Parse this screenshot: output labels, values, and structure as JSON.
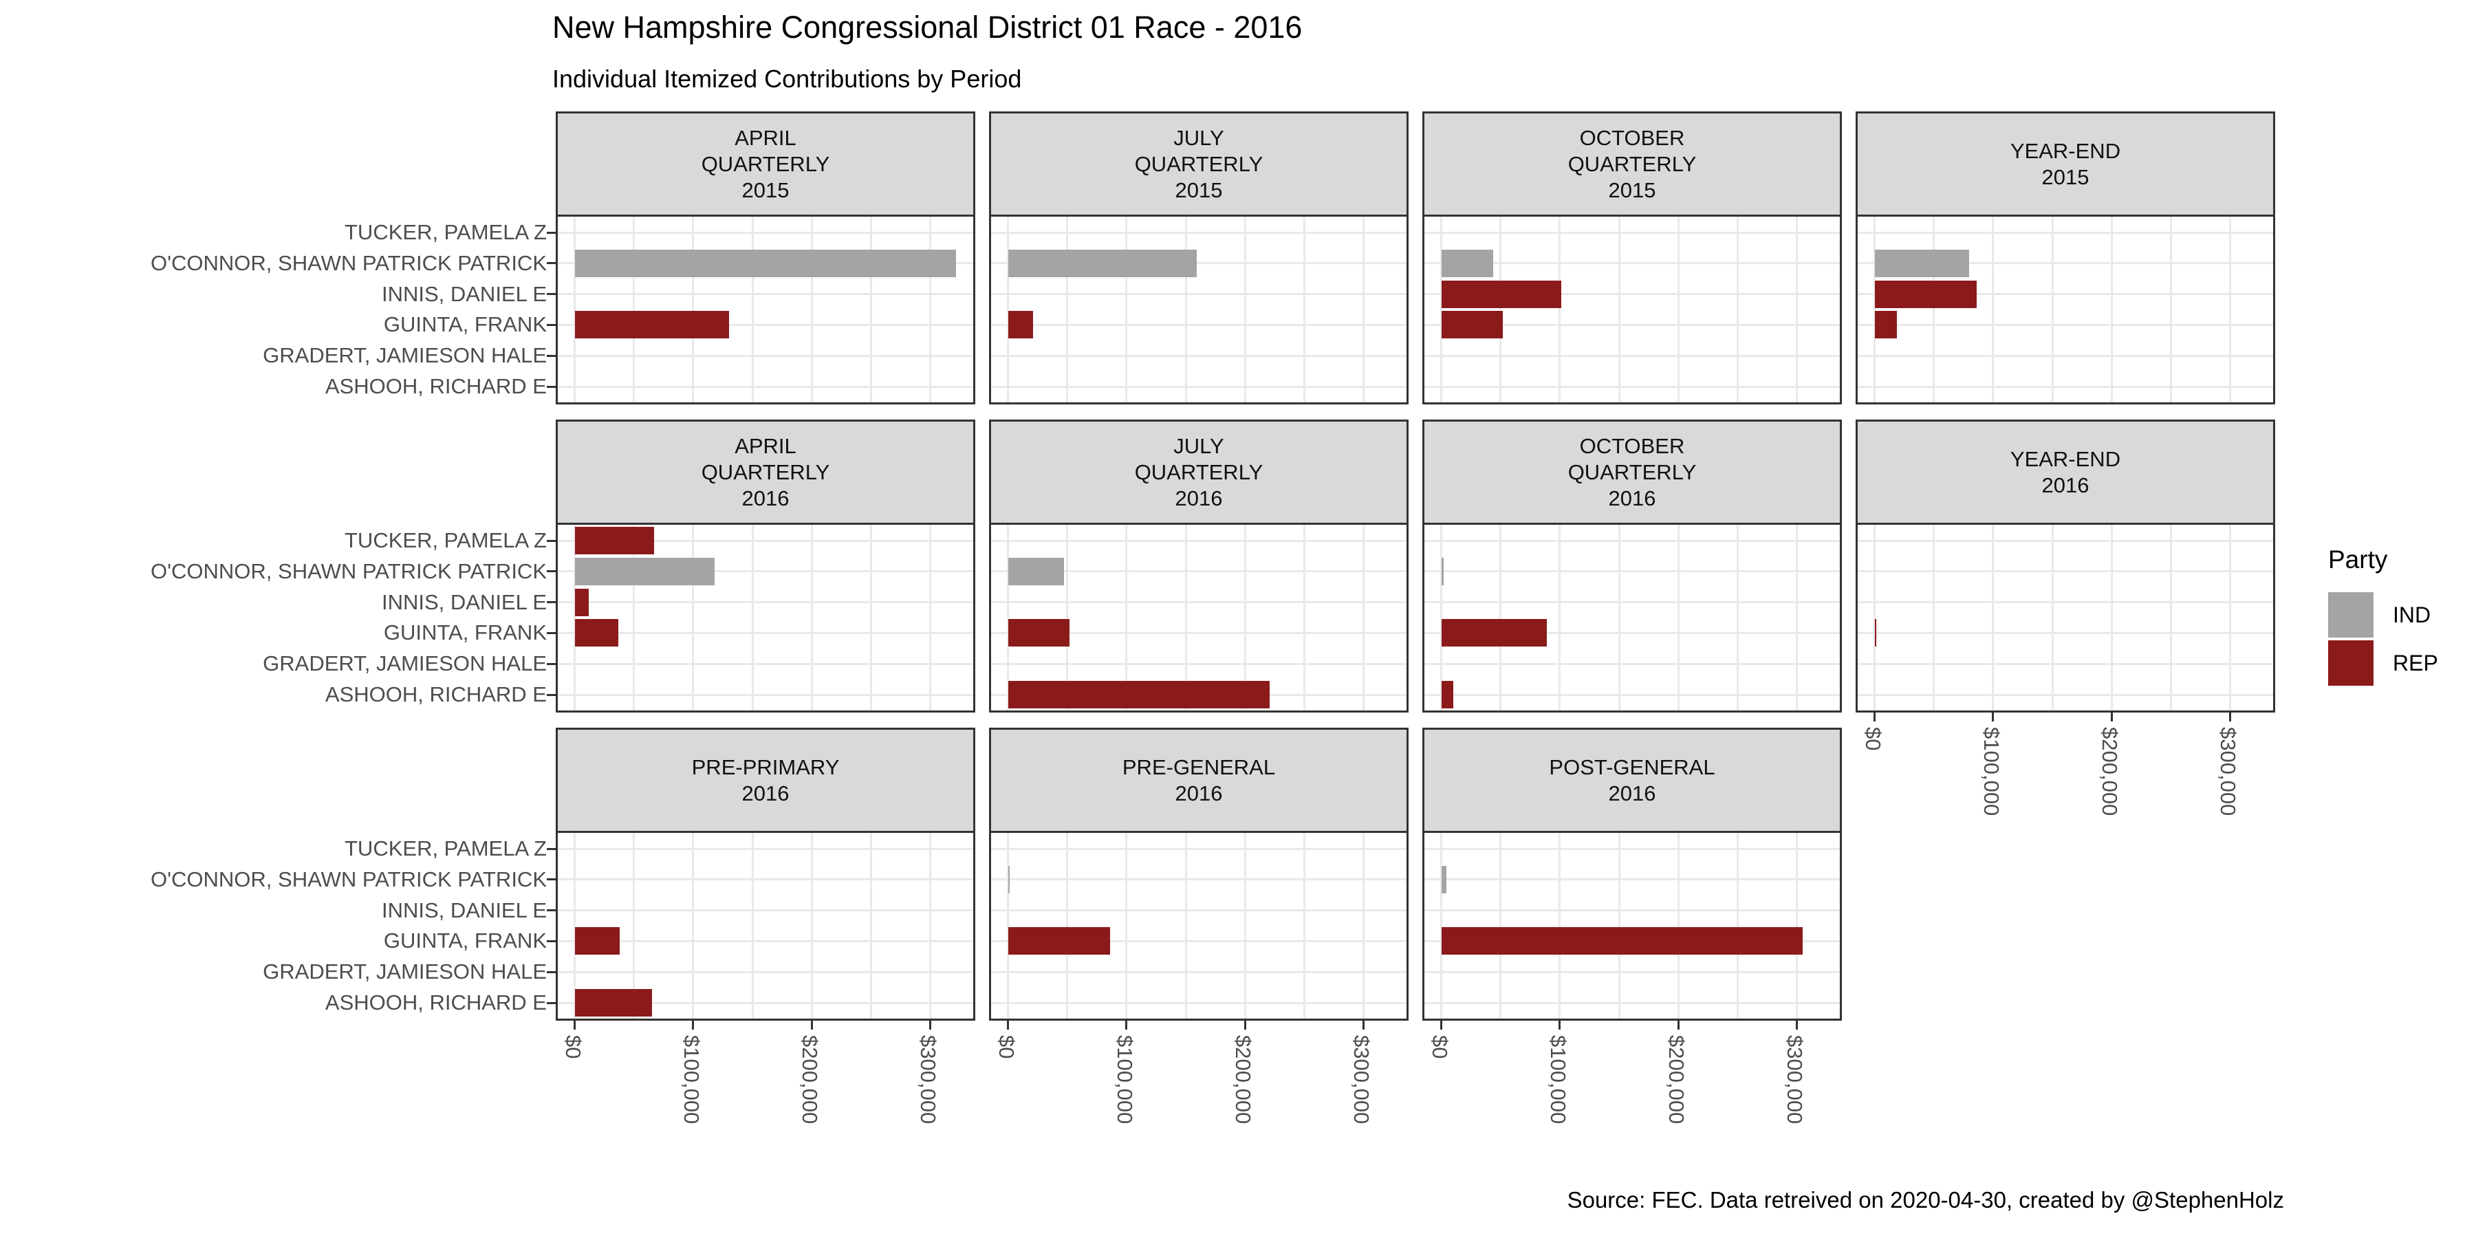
{
  "title": "New Hampshire Congressional District 01 Race - 2016",
  "subtitle": "Individual Itemized Contributions by Period",
  "caption": "Source: FEC. Data retreived on 2020-04-30, created by @StephenHolz",
  "legend": {
    "title": "Party",
    "items": [
      {
        "label": "IND",
        "color": "#A4A4A4"
      },
      {
        "label": "REP",
        "color": "#8B1A1A"
      }
    ]
  },
  "candidates": [
    "TUCKER, PAMELA Z",
    "O'CONNOR, SHAWN PATRICK PATRICK",
    "INNIS, DANIEL E",
    "GUINTA, FRANK",
    "GRADERT, JAMIESON HALE",
    "ASHOOH, RICHARD E"
  ],
  "x_axis": {
    "tick_labels": [
      "$0",
      "$100,000",
      "$200,000",
      "$300,000"
    ],
    "tick_values": [
      0,
      100000,
      200000,
      300000
    ],
    "minor_values": [
      50000,
      150000,
      250000
    ],
    "xmin": -16100,
    "xmax": 338100
  },
  "chart_data": {
    "type": "bar",
    "orientation": "horizontal",
    "title": "New Hampshire Congressional District 01 Race - 2016",
    "subtitle": "Individual Itemized Contributions by Period",
    "caption": "Source: FEC. Data retreived on 2020-04-30, created by @StephenHolz",
    "legend_title": "Party",
    "legend_position": "right",
    "grid": true,
    "xlim": [
      -16100,
      338100
    ],
    "x_ticks": [
      0,
      100000,
      200000,
      300000
    ],
    "x_tick_labels": [
      "$0",
      "$100,000",
      "$200,000",
      "$300,000"
    ],
    "categories": [
      "TUCKER, PAMELA Z",
      "O'CONNOR, SHAWN PATRICK PATRICK",
      "INNIS, DANIEL E",
      "GUINTA, FRANK",
      "GRADERT, JAMIESON HALE",
      "ASHOOH, RICHARD E"
    ],
    "series_colors": {
      "IND": "#A4A4A4",
      "REP": "#8B1A1A"
    },
    "facets": [
      {
        "period": "APRIL QUARTERLY 2015",
        "strip_lines": [
          "APRIL",
          "QUARTERLY",
          "2015"
        ],
        "row": 0,
        "col": 0,
        "x_axis": false,
        "bars": [
          {
            "candidate": "O'CONNOR, SHAWN PATRICK PATRICK",
            "party": "IND",
            "value": 322000
          },
          {
            "candidate": "GUINTA, FRANK",
            "party": "REP",
            "value": 130000
          }
        ]
      },
      {
        "period": "JULY QUARTERLY 2015",
        "strip_lines": [
          "JULY",
          "QUARTERLY",
          "2015"
        ],
        "row": 0,
        "col": 1,
        "x_axis": false,
        "bars": [
          {
            "candidate": "O'CONNOR, SHAWN PATRICK PATRICK",
            "party": "IND",
            "value": 159000
          },
          {
            "candidate": "GUINTA, FRANK",
            "party": "REP",
            "value": 21000
          }
        ]
      },
      {
        "period": "OCTOBER QUARTERLY 2015",
        "strip_lines": [
          "OCTOBER",
          "QUARTERLY",
          "2015"
        ],
        "row": 0,
        "col": 2,
        "x_axis": false,
        "bars": [
          {
            "candidate": "O'CONNOR, SHAWN PATRICK PATRICK",
            "party": "IND",
            "value": 44000
          },
          {
            "candidate": "INNIS, DANIEL E",
            "party": "REP",
            "value": 101000
          },
          {
            "candidate": "GUINTA, FRANK",
            "party": "REP",
            "value": 52000
          }
        ]
      },
      {
        "period": "YEAR-END 2015",
        "strip_lines": [
          "YEAR-END",
          "2015"
        ],
        "row": 0,
        "col": 3,
        "x_axis": false,
        "bars": [
          {
            "candidate": "O'CONNOR, SHAWN PATRICK PATRICK",
            "party": "IND",
            "value": 80000
          },
          {
            "candidate": "INNIS, DANIEL E",
            "party": "REP",
            "value": 86000
          },
          {
            "candidate": "GUINTA, FRANK",
            "party": "REP",
            "value": 19000
          }
        ]
      },
      {
        "period": "APRIL QUARTERLY 2016",
        "strip_lines": [
          "APRIL",
          "QUARTERLY",
          "2016"
        ],
        "row": 1,
        "col": 0,
        "x_axis": false,
        "bars": [
          {
            "candidate": "TUCKER, PAMELA Z",
            "party": "REP",
            "value": 67000
          },
          {
            "candidate": "O'CONNOR, SHAWN PATRICK PATRICK",
            "party": "IND",
            "value": 118000
          },
          {
            "candidate": "INNIS, DANIEL E",
            "party": "REP",
            "value": 12000
          },
          {
            "candidate": "GUINTA, FRANK",
            "party": "REP",
            "value": 37000
          }
        ]
      },
      {
        "period": "JULY QUARTERLY 2016",
        "strip_lines": [
          "JULY",
          "QUARTERLY",
          "2016"
        ],
        "row": 1,
        "col": 1,
        "x_axis": false,
        "bars": [
          {
            "candidate": "O'CONNOR, SHAWN PATRICK PATRICK",
            "party": "IND",
            "value": 47000
          },
          {
            "candidate": "GUINTA, FRANK",
            "party": "REP",
            "value": 52000
          },
          {
            "candidate": "ASHOOH, RICHARD E",
            "party": "REP",
            "value": 221000
          }
        ]
      },
      {
        "period": "OCTOBER QUARTERLY 2016",
        "strip_lines": [
          "OCTOBER",
          "QUARTERLY",
          "2016"
        ],
        "row": 1,
        "col": 2,
        "x_axis": false,
        "bars": [
          {
            "candidate": "O'CONNOR, SHAWN PATRICK PATRICK",
            "party": "IND",
            "value": 2000
          },
          {
            "candidate": "GUINTA, FRANK",
            "party": "REP",
            "value": 89000
          },
          {
            "candidate": "ASHOOH, RICHARD E",
            "party": "REP",
            "value": 10000
          }
        ]
      },
      {
        "period": "YEAR-END 2016",
        "strip_lines": [
          "YEAR-END",
          "2016"
        ],
        "row": 1,
        "col": 3,
        "x_axis": true,
        "bars": [
          {
            "candidate": "GUINTA, FRANK",
            "party": "REP",
            "value": 1500
          }
        ]
      },
      {
        "period": "PRE-PRIMARY 2016",
        "strip_lines": [
          "PRE-PRIMARY",
          "2016"
        ],
        "row": 2,
        "col": 0,
        "x_axis": true,
        "bars": [
          {
            "candidate": "GUINTA, FRANK",
            "party": "REP",
            "value": 38000
          },
          {
            "candidate": "ASHOOH, RICHARD E",
            "party": "REP",
            "value": 65000
          }
        ]
      },
      {
        "period": "PRE-GENERAL 2016",
        "strip_lines": [
          "PRE-GENERAL",
          "2016"
        ],
        "row": 2,
        "col": 1,
        "x_axis": true,
        "bars": [
          {
            "candidate": "O'CONNOR, SHAWN PATRICK PATRICK",
            "party": "IND",
            "value": 1500
          },
          {
            "candidate": "GUINTA, FRANK",
            "party": "REP",
            "value": 86000
          }
        ]
      },
      {
        "period": "POST-GENERAL 2016",
        "strip_lines": [
          "POST-GENERAL",
          "2016"
        ],
        "row": 2,
        "col": 2,
        "x_axis": true,
        "bars": [
          {
            "candidate": "O'CONNOR, SHAWN PATRICK PATRICK",
            "party": "IND",
            "value": 4000
          },
          {
            "candidate": "GUINTA, FRANK",
            "party": "REP",
            "value": 305000
          }
        ]
      }
    ]
  }
}
